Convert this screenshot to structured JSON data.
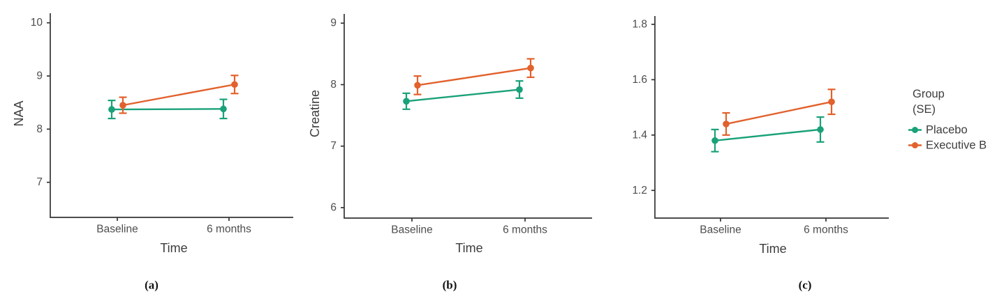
{
  "figure": {
    "background": "#ffffff",
    "axis_color": "#333333",
    "tick_label_color": "#4d4d4d",
    "axis_title_color": "#3d3d3d",
    "caption_color": "#111111",
    "accent_green": "#1aa179",
    "accent_orange": "#e2612c"
  },
  "legend": {
    "title": "Group",
    "subtitle": "(SE)",
    "position": "right",
    "items": [
      {
        "label": "Placebo",
        "color": "#1aa179",
        "marker": "point-with-line"
      },
      {
        "label": "Executive B",
        "color": "#e2612c",
        "marker": "point-with-line"
      }
    ]
  },
  "chart_data": [
    {
      "type": "line",
      "caption": "(a)",
      "title": "",
      "xlabel": "Time",
      "ylabel": "NAA",
      "categories": [
        "Baseline",
        "6 months"
      ],
      "yticks": [
        7,
        8,
        9,
        10
      ],
      "ylim": [
        6.34,
        10.18
      ],
      "grid": false,
      "error_bars": "SE",
      "series": [
        {
          "name": "Placebo",
          "color": "#1aa179",
          "values": [
            8.37,
            8.38
          ],
          "se": [
            0.17,
            0.18
          ]
        },
        {
          "name": "Executive B",
          "color": "#e2612c",
          "values": [
            8.45,
            8.84
          ],
          "se": [
            0.15,
            0.17
          ]
        }
      ]
    },
    {
      "type": "line",
      "caption": "(b)",
      "title": "",
      "xlabel": "Time",
      "ylabel": "Creatine",
      "categories": [
        "Baseline",
        "6 months"
      ],
      "yticks": [
        6,
        7,
        8,
        9
      ],
      "ylim": [
        5.83,
        9.15
      ],
      "grid": false,
      "error_bars": "SE",
      "series": [
        {
          "name": "Placebo",
          "color": "#1aa179",
          "values": [
            7.73,
            7.92
          ],
          "se": [
            0.13,
            0.14
          ]
        },
        {
          "name": "Executive B",
          "color": "#e2612c",
          "values": [
            7.99,
            8.27
          ],
          "se": [
            0.15,
            0.15
          ]
        }
      ]
    },
    {
      "type": "line",
      "caption": "(c)",
      "title": "",
      "xlabel": "Time",
      "ylabel": "",
      "categories": [
        "Baseline",
        "6 months"
      ],
      "yticks": [
        1.2,
        1.4,
        1.6,
        1.8
      ],
      "ylim": [
        1.1,
        1.83
      ],
      "grid": false,
      "error_bars": "SE",
      "series": [
        {
          "name": "Placebo",
          "color": "#1aa179",
          "values": [
            1.38,
            1.42
          ],
          "se": [
            0.04,
            0.045
          ]
        },
        {
          "name": "Executive B",
          "color": "#e2612c",
          "values": [
            1.44,
            1.52
          ],
          "se": [
            0.04,
            0.045
          ]
        }
      ]
    }
  ]
}
